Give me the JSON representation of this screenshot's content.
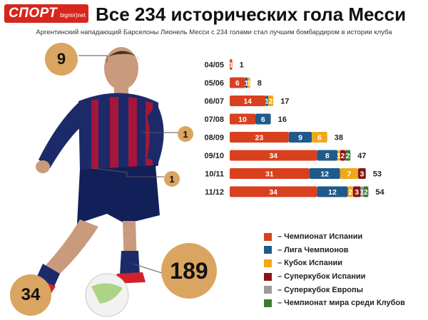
{
  "logo": {
    "main": "СПОРТ",
    "sub": "bigmir)net"
  },
  "title": "Все 234 исторических гола Месси",
  "subtitle": "Аргентинский нападающий Барселоны Лионель Месси с 234 голами стал лучшим бомбардиром в истории клуба",
  "callouts": {
    "head": "9",
    "left_foot": "34",
    "right_foot": "189",
    "chest": "1",
    "hand": "1"
  },
  "colors": {
    "la_liga": "#d9401e",
    "champions_league": "#1f5a8a",
    "copa_del_rey": "#f0a818",
    "spanish_supercup": "#8a1414",
    "european_supercup": "#9a9a9a",
    "club_world_cup": "#3c7a32",
    "circle": "#d9a560"
  },
  "chart_data": {
    "type": "bar",
    "orientation": "horizontal",
    "stacked": true,
    "categories": [
      "04/05",
      "05/06",
      "06/07",
      "07/08",
      "08/09",
      "09/10",
      "10/11",
      "11/12"
    ],
    "totals": [
      1,
      8,
      17,
      16,
      38,
      47,
      53,
      54
    ],
    "series": [
      {
        "name": "– Чемпионат Испании",
        "key": "la_liga",
        "values": [
          1,
          6,
          14,
          10,
          23,
          34,
          31,
          34
        ]
      },
      {
        "name": "– Лига Чемпионов",
        "key": "champions_league",
        "values": [
          0,
          1,
          1,
          6,
          9,
          8,
          12,
          12
        ]
      },
      {
        "name": "– Кубок Испании",
        "key": "copa_del_rey",
        "values": [
          0,
          1,
          2,
          0,
          6,
          1,
          7,
          2
        ]
      },
      {
        "name": "– Суперкубок Испании",
        "key": "spanish_supercup",
        "values": [
          0,
          0,
          0,
          0,
          0,
          2,
          3,
          3
        ]
      },
      {
        "name": "– Суперкубок Европы",
        "key": "european_supercup",
        "values": [
          0,
          0,
          0,
          0,
          0,
          0,
          0,
          1
        ]
      },
      {
        "name": "– Чемпионат мира среди Клубов",
        "key": "club_world_cup",
        "values": [
          0,
          0,
          0,
          0,
          0,
          2,
          0,
          2
        ]
      }
    ],
    "legend": "bottom-right",
    "grid": false
  }
}
